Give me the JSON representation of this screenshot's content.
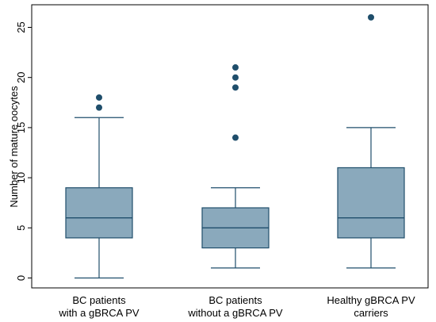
{
  "chart_data": {
    "type": "box",
    "ylabel": "Number of mature  oocytes",
    "ylim": [
      -0.2,
      26.5
    ],
    "yticks": [
      0,
      5,
      10,
      15,
      20,
      25
    ],
    "yticklabels": [
      "0",
      "5",
      "10",
      "15",
      "20",
      "25"
    ],
    "grid": false,
    "categories": [
      [
        "BC patients",
        "with a gBRCA PV"
      ],
      [
        "BC patients",
        "without a gBRCA PV"
      ],
      [
        "Healthy gBRCA PV",
        "carriers"
      ]
    ],
    "boxes": [
      {
        "whisker_low": 0,
        "q1": 4,
        "median": 6,
        "q3": 9,
        "whisker_high": 16,
        "outliers": [
          17,
          18
        ]
      },
      {
        "whisker_low": 1,
        "q1": 3,
        "median": 5,
        "q3": 7,
        "whisker_high": 9,
        "outliers": [
          14,
          19,
          20,
          21
        ]
      },
      {
        "whisker_low": 1,
        "q1": 4,
        "median": 6,
        "q3": 11,
        "whisker_high": 15,
        "outliers": [
          26
        ]
      }
    ],
    "colors": {
      "box_fill": "#8aa9bc",
      "box_stroke": "#1f4e6b",
      "outlier": "#1f4e6b"
    }
  }
}
